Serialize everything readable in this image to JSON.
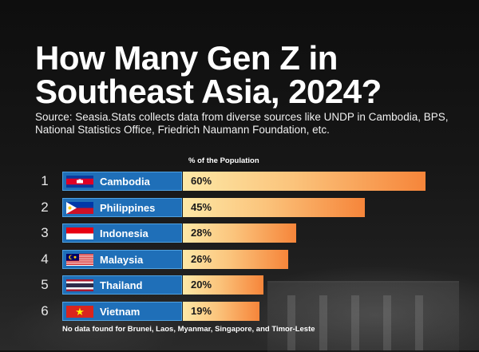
{
  "title": "How Many Gen Z in Southeast Asia, 2024?",
  "source": "Source: Seasia.Stats collects data from diverse sources like UNDP in Cambodia, BPS, National Statistics Office, Friedrich Naumann Foundation, etc.",
  "footnote": "No data found for Brunei, Laos, Myanmar, Singapore, and Timor-Leste",
  "chart_data": {
    "type": "bar",
    "orientation": "horizontal",
    "value_axis_label": "% of the Population",
    "categories": [
      "Cambodia",
      "Philippines",
      "Indonesia",
      "Malaysia",
      "Thailand",
      "Vietnam"
    ],
    "ranks": [
      "1",
      "2",
      "3",
      "4",
      "5",
      "6"
    ],
    "values": [
      60,
      45,
      28,
      26,
      20,
      19
    ],
    "value_labels": [
      "60%",
      "45%",
      "28%",
      "26%",
      "20%",
      "19%"
    ],
    "flags": [
      "cambodia-flag",
      "philippines-flag",
      "indonesia-flag",
      "malaysia-flag",
      "thailand-flag",
      "vietnam-flag"
    ],
    "grid": false,
    "legend": "none"
  },
  "colors": {
    "country_box": "#1f6fb8",
    "bar_start": "#fde8a6",
    "bar_end": "#f6853a",
    "background": "#121212"
  }
}
